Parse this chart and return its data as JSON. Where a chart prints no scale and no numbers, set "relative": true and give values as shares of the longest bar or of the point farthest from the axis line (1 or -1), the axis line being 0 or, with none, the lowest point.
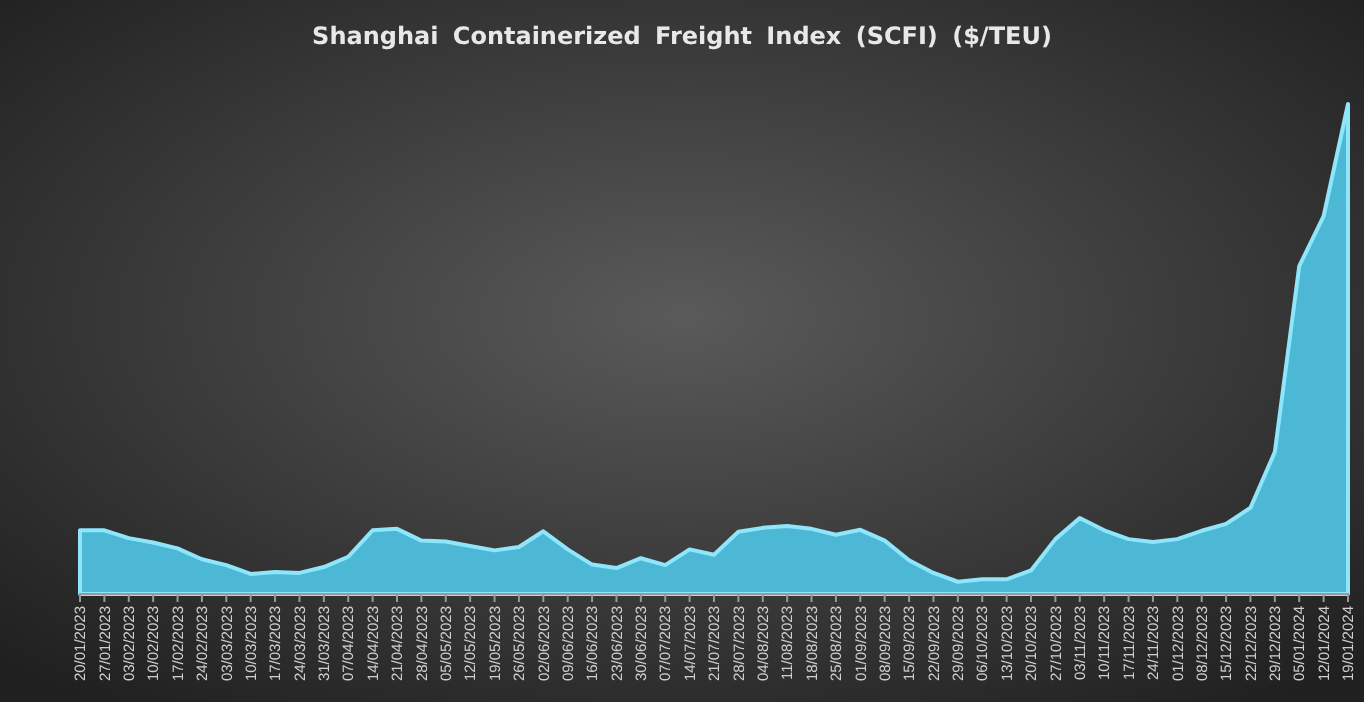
{
  "chart_data": {
    "type": "area",
    "title": "Shanghai Containerized Freight Index (SCFI) ($/TEU)",
    "relative": true,
    "color": "#4db8d6",
    "categories": [
      "20/01/2023",
      "27/01/2023",
      "03/02/2023",
      "10/02/2023",
      "17/02/2023",
      "24/02/2023",
      "03/03/2023",
      "10/03/2023",
      "17/03/2023",
      "24/03/2023",
      "31/03/2023",
      "07/04/2023",
      "14/04/2023",
      "21/04/2023",
      "28/04/2023",
      "05/05/2023",
      "12/05/2023",
      "19/05/2023",
      "26/05/2023",
      "02/06/2023",
      "09/06/2023",
      "16/06/2023",
      "23/06/2023",
      "30/06/2023",
      "07/07/2023",
      "14/07/2023",
      "21/07/2023",
      "28/07/2023",
      "04/08/2023",
      "11/08/2023",
      "18/08/2023",
      "25/08/2023",
      "01/09/2023",
      "08/09/2023",
      "15/09/2023",
      "22/09/2023",
      "29/09/2023",
      "06/10/2023",
      "13/10/2023",
      "20/10/2023",
      "27/10/2023",
      "03/11/2023",
      "10/11/2023",
      "17/11/2023",
      "24/11/2023",
      "01/12/2023",
      "08/12/2023",
      "15/12/2023",
      "22/12/2023",
      "29/12/2023",
      "05/01/2024",
      "12/01/2024",
      "19/01/2024"
    ],
    "values": [
      0.13,
      0.13,
      0.114,
      0.105,
      0.093,
      0.071,
      0.059,
      0.041,
      0.045,
      0.043,
      0.055,
      0.076,
      0.13,
      0.133,
      0.109,
      0.107,
      0.098,
      0.089,
      0.096,
      0.128,
      0.091,
      0.06,
      0.053,
      0.073,
      0.059,
      0.091,
      0.08,
      0.127,
      0.135,
      0.139,
      0.133,
      0.121,
      0.131,
      0.109,
      0.069,
      0.043,
      0.025,
      0.03,
      0.03,
      0.048,
      0.112,
      0.155,
      0.13,
      0.112,
      0.106,
      0.112,
      0.129,
      0.143,
      0.176,
      0.29,
      0.669,
      0.771,
      1
    ]
  }
}
